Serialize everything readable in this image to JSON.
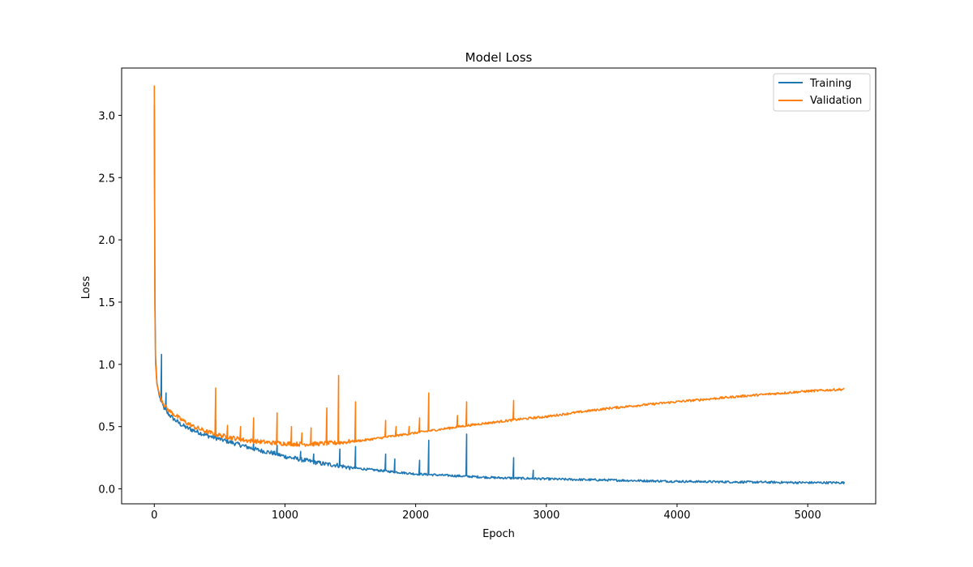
{
  "chart_data": {
    "type": "line",
    "title": "Model Loss",
    "xlabel": "Epoch",
    "ylabel": "Loss",
    "xlim": [
      -250,
      5520
    ],
    "ylim": [
      -0.12,
      3.38
    ],
    "xticks": [
      0,
      1000,
      2000,
      3000,
      4000,
      5000
    ],
    "xtick_labels": [
      "0",
      "1000",
      "2000",
      "3000",
      "4000",
      "5000"
    ],
    "yticks": [
      0.0,
      0.5,
      1.0,
      1.5,
      2.0,
      2.5,
      3.0
    ],
    "ytick_labels": [
      "0.0",
      "0.5",
      "1.0",
      "1.5",
      "2.0",
      "2.5",
      "3.0"
    ],
    "grid": false,
    "legend_position": "upper right",
    "series": [
      {
        "name": "Training",
        "color": "#1f77b4",
        "x": [
          0,
          5,
          10,
          20,
          40,
          60,
          80,
          100,
          150,
          200,
          250,
          300,
          400,
          500,
          600,
          700,
          800,
          900,
          1000,
          1100,
          1200,
          1300,
          1400,
          1500,
          1600,
          1800,
          2000,
          2200,
          2400,
          2600,
          2800,
          3000,
          3200,
          3500,
          4000,
          4500,
          5000,
          5280
        ],
        "values": [
          3.08,
          1.5,
          1.05,
          0.85,
          0.74,
          0.68,
          0.64,
          0.61,
          0.56,
          0.52,
          0.49,
          0.47,
          0.43,
          0.4,
          0.37,
          0.34,
          0.31,
          0.29,
          0.26,
          0.24,
          0.22,
          0.2,
          0.19,
          0.17,
          0.16,
          0.14,
          0.12,
          0.11,
          0.1,
          0.09,
          0.085,
          0.08,
          0.075,
          0.07,
          0.06,
          0.055,
          0.05,
          0.05
        ],
        "spikes": [
          [
            55,
            1.08
          ],
          [
            90,
            0.77
          ],
          [
            470,
            0.55
          ],
          [
            760,
            0.38
          ],
          [
            940,
            0.35
          ],
          [
            1120,
            0.3
          ],
          [
            1220,
            0.28
          ],
          [
            1420,
            0.32
          ],
          [
            1540,
            0.34
          ],
          [
            1770,
            0.28
          ],
          [
            1840,
            0.24
          ],
          [
            2030,
            0.23
          ],
          [
            2100,
            0.39
          ],
          [
            2390,
            0.44
          ],
          [
            2750,
            0.25
          ],
          [
            2900,
            0.15
          ]
        ]
      },
      {
        "name": "Validation",
        "color": "#ff7f0e",
        "x": [
          0,
          5,
          10,
          20,
          40,
          60,
          80,
          100,
          150,
          200,
          250,
          300,
          400,
          500,
          600,
          700,
          800,
          900,
          1000,
          1100,
          1200,
          1300,
          1400,
          1500,
          1600,
          1800,
          2000,
          2200,
          2400,
          2600,
          2800,
          3000,
          3200,
          3500,
          4000,
          4500,
          5000,
          5280
        ],
        "values": [
          3.24,
          1.4,
          1.0,
          0.84,
          0.76,
          0.71,
          0.67,
          0.64,
          0.6,
          0.56,
          0.53,
          0.5,
          0.46,
          0.43,
          0.41,
          0.39,
          0.38,
          0.37,
          0.365,
          0.36,
          0.36,
          0.365,
          0.37,
          0.38,
          0.39,
          0.42,
          0.45,
          0.48,
          0.51,
          0.535,
          0.56,
          0.58,
          0.61,
          0.65,
          0.7,
          0.745,
          0.785,
          0.8
        ],
        "spikes": [
          [
            35,
            0.88
          ],
          [
            470,
            0.81
          ],
          [
            560,
            0.51
          ],
          [
            660,
            0.5
          ],
          [
            760,
            0.57
          ],
          [
            940,
            0.61
          ],
          [
            1050,
            0.5
          ],
          [
            1130,
            0.45
          ],
          [
            1200,
            0.49
          ],
          [
            1320,
            0.65
          ],
          [
            1410,
            0.91
          ],
          [
            1540,
            0.7
          ],
          [
            1770,
            0.55
          ],
          [
            1850,
            0.5
          ],
          [
            1950,
            0.5
          ],
          [
            2030,
            0.57
          ],
          [
            2100,
            0.77
          ],
          [
            2320,
            0.59
          ],
          [
            2390,
            0.7
          ],
          [
            2750,
            0.71
          ]
        ]
      }
    ]
  }
}
